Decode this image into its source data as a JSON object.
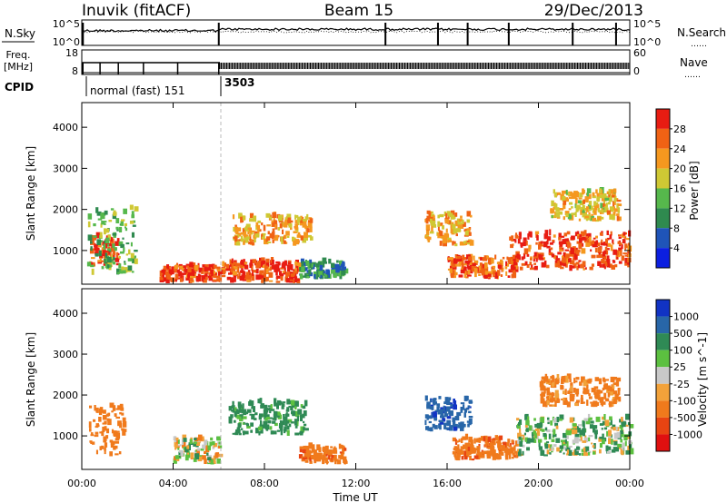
{
  "header": {
    "station": "Inuvik (fitACF)",
    "beam": "Beam 15",
    "date": "29/Dec/2013"
  },
  "noise_panel": {
    "left_label": "N.Sky",
    "right_label": "N.Search",
    "right_label_line": "……",
    "tick_top": "10^5",
    "tick_bottom": "10^0"
  },
  "freq_panel": {
    "left_label_line1": "Freq.",
    "left_label_line2": "[MHz]",
    "right_label": "Nave",
    "right_label_line": "……",
    "left_tick_top": "18",
    "left_tick_bottom": "8",
    "right_tick_top": "60",
    "right_tick_bottom": "0"
  },
  "cpid": {
    "label": "CPID",
    "segments": [
      {
        "start_hour": 0.0,
        "text": "normal (fast) 151"
      },
      {
        "start_hour": 6.05,
        "text": "3503"
      }
    ]
  },
  "x_axis": {
    "label": "Time UT",
    "tick_labels": [
      "00:00",
      "04:00",
      "08:00",
      "12:00",
      "16:00",
      "20:00",
      "00:00"
    ],
    "tick_hours": [
      0,
      4,
      8,
      12,
      16,
      20,
      24
    ],
    "range": [
      0,
      24
    ]
  },
  "range_axis": {
    "label": "Slant Range [km]",
    "tick_labels": [
      "1000",
      "2000",
      "3000",
      "4000"
    ],
    "ticks": [
      1000,
      2000,
      3000,
      4000
    ],
    "range": [
      180,
      4600
    ]
  },
  "power_colorbar": {
    "label": "Power [dB]",
    "tick_labels": [
      "4",
      "8",
      "12",
      "16",
      "20",
      "24",
      "28"
    ],
    "colors": [
      "#0c1fe0",
      "#1f54b8",
      "#2f8a4f",
      "#56b84c",
      "#cfc834",
      "#f5981f",
      "#f06214",
      "#e81c12"
    ]
  },
  "velocity_colorbar": {
    "label": "Velocity [m s^-1]",
    "tick_labels": [
      "1000",
      "500",
      "100",
      "25",
      "-25",
      "-100",
      "-500",
      "-1000"
    ],
    "colors": [
      "#1133c4",
      "#2866a8",
      "#2f8a55",
      "#5cc040",
      "#c8c8c8",
      "#f2a23a",
      "#f07a1c",
      "#e84412",
      "#e01010"
    ]
  },
  "chart_data": {
    "type": "heatmap",
    "x_range": [
      0,
      24
    ],
    "y_range": [
      180,
      4600
    ],
    "power_echo_regions": [
      {
        "t0": 0.3,
        "t1": 1.6,
        "r0": 600,
        "r1": 1300,
        "level": 28
      },
      {
        "t0": 0.2,
        "t1": 2.3,
        "r0": 400,
        "r1": 2000,
        "level": 14
      },
      {
        "t0": 3.4,
        "t1": 6.0,
        "r0": 200,
        "r1": 600,
        "level": 28
      },
      {
        "t0": 6.1,
        "t1": 9.5,
        "r0": 200,
        "r1": 700,
        "level": 28
      },
      {
        "t0": 6.6,
        "t1": 10.0,
        "r0": 1100,
        "r1": 1800,
        "level": 22
      },
      {
        "t0": 9.5,
        "t1": 11.5,
        "r0": 300,
        "r1": 700,
        "level": 10
      },
      {
        "t0": 15.0,
        "t1": 17.0,
        "r0": 1100,
        "r1": 1900,
        "level": 22
      },
      {
        "t0": 16.0,
        "t1": 19.0,
        "r0": 300,
        "r1": 800,
        "level": 26
      },
      {
        "t0": 18.7,
        "t1": 24.0,
        "r0": 500,
        "r1": 1400,
        "level": 28
      },
      {
        "t0": 20.5,
        "t1": 23.5,
        "r0": 1700,
        "r1": 2400,
        "level": 20
      }
    ],
    "velocity_echo_regions": [
      {
        "t0": 0.3,
        "t1": 1.8,
        "r0": 500,
        "r1": 1700,
        "velocity": -300
      },
      {
        "t0": 4.0,
        "t1": 6.0,
        "r0": 300,
        "r1": 900,
        "velocity": 0
      },
      {
        "t0": 6.4,
        "t1": 9.8,
        "r0": 1000,
        "r1": 1800,
        "velocity": 200
      },
      {
        "t0": 9.5,
        "t1": 11.5,
        "r0": 300,
        "r1": 700,
        "velocity": -400
      },
      {
        "t0": 15.0,
        "t1": 17.0,
        "r0": 1100,
        "r1": 1900,
        "velocity": 900
      },
      {
        "t0": 16.2,
        "t1": 19.0,
        "r0": 400,
        "r1": 900,
        "velocity": -400
      },
      {
        "t0": 19.0,
        "t1": 24.0,
        "r0": 500,
        "r1": 1400,
        "velocity": 60
      },
      {
        "t0": 20.0,
        "t1": 23.5,
        "r0": 1700,
        "r1": 2400,
        "velocity": -200
      }
    ]
  }
}
